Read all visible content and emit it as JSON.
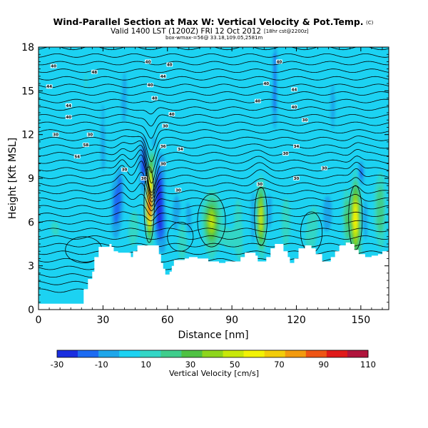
{
  "chart_data": {
    "type": "heatmap",
    "title": "Wind-Parallel Section at Max W: Vertical Velocity & Pot.Temp.",
    "title_mark": "(C)",
    "subtitle": "Valid 1400 LST (1200Z) FRI 12 Oct 2012",
    "subtitle_note": "[18hr cst@2200z]",
    "subtitle_small": "box-wmax-=56@ 33.18,109.05,2581m",
    "xlabel": "Distance [nm]",
    "ylabel": "Height [Kft MSL]",
    "xlim": [
      0,
      163
    ],
    "ylim": [
      0,
      18
    ],
    "x_ticks": [
      0,
      30,
      60,
      90,
      120,
      150
    ],
    "y_ticks": [
      0,
      3,
      6,
      9,
      12,
      15,
      18
    ],
    "colorbar": {
      "label": "Vertical Velocity [cm/s]",
      "tick_labels": [
        "-30",
        "-10",
        "10",
        "30",
        "50",
        "70",
        "90",
        "110"
      ],
      "levels": [
        -30,
        -20,
        -10,
        0,
        10,
        20,
        30,
        40,
        50,
        60,
        70,
        80,
        90,
        100,
        110
      ],
      "colors": [
        "#1a2ee0",
        "#1c6bf2",
        "#1ea6ea",
        "#1cd2f2",
        "#33d6c6",
        "#3fcd8c",
        "#4fc243",
        "#8ed51d",
        "#c8e80a",
        "#f2f205",
        "#f2cc0a",
        "#f29a0f",
        "#ee5515",
        "#e01a1a",
        "#b0143c"
      ]
    },
    "background_value_cm_s": 5,
    "theta_contour_labels": [
      {
        "x": 7,
        "y": 16.7,
        "text": "40"
      },
      {
        "x": 5,
        "y": 15.3,
        "text": "44"
      },
      {
        "x": 26,
        "y": 16.3,
        "text": "48"
      },
      {
        "x": 24,
        "y": 12.0,
        "text": "30"
      },
      {
        "x": 14,
        "y": 14.0,
        "text": "44"
      },
      {
        "x": 14,
        "y": 13.2,
        "text": "40"
      },
      {
        "x": 8,
        "y": 12.0,
        "text": "30"
      },
      {
        "x": 22,
        "y": 11.3,
        "text": "58"
      },
      {
        "x": 18,
        "y": 10.5,
        "text": "54"
      },
      {
        "x": 40,
        "y": 9.6,
        "text": "30"
      },
      {
        "x": 51,
        "y": 17.0,
        "text": "40"
      },
      {
        "x": 58,
        "y": 16.0,
        "text": "44"
      },
      {
        "x": 61,
        "y": 16.8,
        "text": "40"
      },
      {
        "x": 52,
        "y": 15.4,
        "text": "40"
      },
      {
        "x": 54,
        "y": 14.5,
        "text": "40"
      },
      {
        "x": 62,
        "y": 13.4,
        "text": "40"
      },
      {
        "x": 59,
        "y": 12.6,
        "text": "30"
      },
      {
        "x": 58,
        "y": 11.2,
        "text": "36"
      },
      {
        "x": 66,
        "y": 11.0,
        "text": "34"
      },
      {
        "x": 58,
        "y": 10.0,
        "text": "30"
      },
      {
        "x": 49,
        "y": 9.0,
        "text": "30"
      },
      {
        "x": 65,
        "y": 8.2,
        "text": "30"
      },
      {
        "x": 112,
        "y": 17.0,
        "text": "40"
      },
      {
        "x": 106,
        "y": 15.5,
        "text": "40"
      },
      {
        "x": 119,
        "y": 15.1,
        "text": "44"
      },
      {
        "x": 102,
        "y": 14.3,
        "text": "40"
      },
      {
        "x": 119,
        "y": 13.9,
        "text": "40"
      },
      {
        "x": 124,
        "y": 13.0,
        "text": "30"
      },
      {
        "x": 120,
        "y": 11.2,
        "text": "34"
      },
      {
        "x": 115,
        "y": 10.7,
        "text": "30"
      },
      {
        "x": 103,
        "y": 8.6,
        "text": "30"
      },
      {
        "x": 133,
        "y": 9.7,
        "text": "30"
      },
      {
        "x": 120,
        "y": 9.0,
        "text": "30"
      }
    ],
    "velocity_cores": [
      {
        "x": 51.8,
        "y": 7.2,
        "peak": 110
      },
      {
        "x": 103.5,
        "y": 6.3,
        "peak": 55
      },
      {
        "x": 80.5,
        "y": 6.1,
        "peak": 55
      },
      {
        "x": 147.5,
        "y": 6.3,
        "peak": 65
      },
      {
        "x": 55,
        "y": 7.5,
        "peak": -25
      },
      {
        "x": 36,
        "y": 7.0,
        "peak": -15
      },
      {
        "x": 47.5,
        "y": 10.3,
        "peak": -25
      },
      {
        "x": 150,
        "y": 9.5,
        "peak": -20
      },
      {
        "x": 110,
        "y": 15.0,
        "peak": -15
      }
    ]
  }
}
